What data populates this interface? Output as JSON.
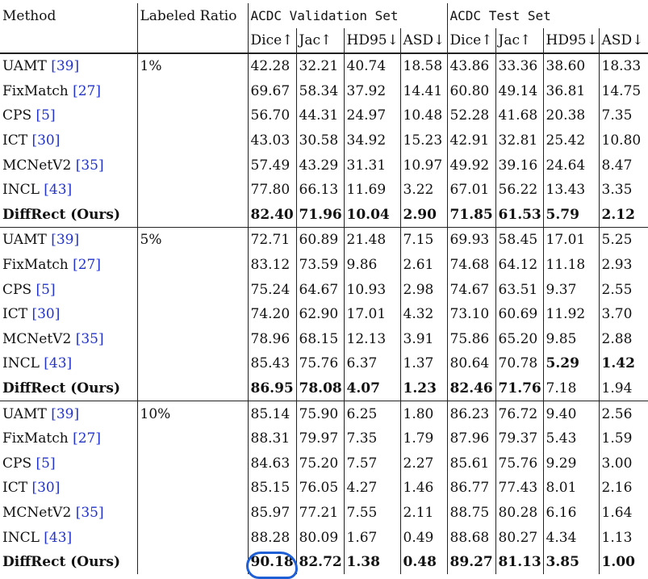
{
  "header": {
    "method": "Method",
    "ratio": "Labeled Ratio",
    "val_set": "ACDC Validation Set",
    "test_set": "ACDC Test Set",
    "metrics": [
      "Dice↑",
      "Jac↑",
      "HD95↓",
      "ASD↓",
      "Dice↑",
      "Jac↑",
      "HD95↓",
      "ASD↓"
    ]
  },
  "groups": [
    {
      "ratio": "1%",
      "rows": [
        {
          "name": "UAMT",
          "ref": "[39]",
          "vals": [
            "42.28",
            "32.21",
            "40.74",
            "18.58",
            "43.86",
            "33.36",
            "38.60",
            "18.33"
          ],
          "bold": [
            false,
            false,
            false,
            false,
            false,
            false,
            false,
            false
          ]
        },
        {
          "name": "FixMatch",
          "ref": "[27]",
          "vals": [
            "69.67",
            "58.34",
            "37.92",
            "14.41",
            "60.80",
            "49.14",
            "36.81",
            "14.75"
          ],
          "bold": [
            false,
            false,
            false,
            false,
            false,
            false,
            false,
            false
          ]
        },
        {
          "name": "CPS",
          "ref": "[5]",
          "vals": [
            "56.70",
            "44.31",
            "24.97",
            "10.48",
            "52.28",
            "41.68",
            "20.38",
            "7.35"
          ],
          "bold": [
            false,
            false,
            false,
            false,
            false,
            false,
            false,
            false
          ]
        },
        {
          "name": "ICT",
          "ref": "[30]",
          "vals": [
            "43.03",
            "30.58",
            "34.92",
            "15.23",
            "42.91",
            "32.81",
            "25.42",
            "10.80"
          ],
          "bold": [
            false,
            false,
            false,
            false,
            false,
            false,
            false,
            false
          ]
        },
        {
          "name": "MCNetV2",
          "ref": "[35]",
          "vals": [
            "57.49",
            "43.29",
            "31.31",
            "10.97",
            "49.92",
            "39.16",
            "24.64",
            "8.47"
          ],
          "bold": [
            false,
            false,
            false,
            false,
            false,
            false,
            false,
            false
          ]
        },
        {
          "name": "INCL",
          "ref": "[43]",
          "vals": [
            "77.80",
            "66.13",
            "11.69",
            "3.22",
            "67.01",
            "56.22",
            "13.43",
            "3.35"
          ],
          "bold": [
            false,
            false,
            false,
            false,
            false,
            false,
            false,
            false
          ]
        },
        {
          "name": "DiffRect (Ours)",
          "ref": "",
          "ours": true,
          "vals": [
            "82.40",
            "71.96",
            "10.04",
            "2.90",
            "71.85",
            "61.53",
            "5.79",
            "2.12"
          ],
          "bold": [
            true,
            true,
            true,
            true,
            true,
            true,
            true,
            true
          ]
        }
      ]
    },
    {
      "ratio": "5%",
      "rows": [
        {
          "name": "UAMT",
          "ref": "[39]",
          "vals": [
            "72.71",
            "60.89",
            "21.48",
            "7.15",
            "69.93",
            "58.45",
            "17.01",
            "5.25"
          ],
          "bold": [
            false,
            false,
            false,
            false,
            false,
            false,
            false,
            false
          ]
        },
        {
          "name": "FixMatch",
          "ref": "[27]",
          "vals": [
            "83.12",
            "73.59",
            "9.86",
            "2.61",
            "74.68",
            "64.12",
            "11.18",
            "2.93"
          ],
          "bold": [
            false,
            false,
            false,
            false,
            false,
            false,
            false,
            false
          ]
        },
        {
          "name": "CPS",
          "ref": "[5]",
          "vals": [
            "75.24",
            "64.67",
            "10.93",
            "2.98",
            "74.67",
            "63.51",
            "9.37",
            "2.55"
          ],
          "bold": [
            false,
            false,
            false,
            false,
            false,
            false,
            false,
            false
          ]
        },
        {
          "name": "ICT",
          "ref": "[30]",
          "vals": [
            "74.20",
            "62.90",
            "17.01",
            "4.32",
            "73.10",
            "60.69",
            "11.92",
            "3.70"
          ],
          "bold": [
            false,
            false,
            false,
            false,
            false,
            false,
            false,
            false
          ]
        },
        {
          "name": "MCNetV2",
          "ref": "[35]",
          "vals": [
            "78.96",
            "68.15",
            "12.13",
            "3.91",
            "75.86",
            "65.20",
            "9.85",
            "2.88"
          ],
          "bold": [
            false,
            false,
            false,
            false,
            false,
            false,
            false,
            false
          ]
        },
        {
          "name": "INCL",
          "ref": "[43]",
          "vals": [
            "85.43",
            "75.76",
            "6.37",
            "1.37",
            "80.64",
            "70.78",
            "5.29",
            "1.42"
          ],
          "bold": [
            false,
            false,
            false,
            false,
            false,
            false,
            true,
            true
          ]
        },
        {
          "name": "DiffRect (Ours)",
          "ref": "",
          "ours": true,
          "vals": [
            "86.95",
            "78.08",
            "4.07",
            "1.23",
            "82.46",
            "71.76",
            "7.18",
            "1.94"
          ],
          "bold": [
            true,
            true,
            true,
            true,
            true,
            true,
            false,
            false
          ]
        }
      ]
    },
    {
      "ratio": "10%",
      "rows": [
        {
          "name": "UAMT",
          "ref": "[39]",
          "vals": [
            "85.14",
            "75.90",
            "6.25",
            "1.80",
            "86.23",
            "76.72",
            "9.40",
            "2.56"
          ],
          "bold": [
            false,
            false,
            false,
            false,
            false,
            false,
            false,
            false
          ]
        },
        {
          "name": "FixMatch",
          "ref": "[27]",
          "vals": [
            "88.31",
            "79.97",
            "7.35",
            "1.79",
            "87.96",
            "79.37",
            "5.43",
            "1.59"
          ],
          "bold": [
            false,
            false,
            false,
            false,
            false,
            false,
            false,
            false
          ]
        },
        {
          "name": "CPS",
          "ref": "[5]",
          "vals": [
            "84.63",
            "75.20",
            "7.57",
            "2.27",
            "85.61",
            "75.76",
            "9.29",
            "3.00"
          ],
          "bold": [
            false,
            false,
            false,
            false,
            false,
            false,
            false,
            false
          ]
        },
        {
          "name": "ICT",
          "ref": "[30]",
          "vals": [
            "85.15",
            "76.05",
            "4.27",
            "1.46",
            "86.77",
            "77.43",
            "8.01",
            "2.16"
          ],
          "bold": [
            false,
            false,
            false,
            false,
            false,
            false,
            false,
            false
          ]
        },
        {
          "name": "MCNetV2",
          "ref": "[35]",
          "vals": [
            "85.97",
            "77.21",
            "7.55",
            "2.11",
            "88.75",
            "80.28",
            "6.16",
            "1.64"
          ],
          "bold": [
            false,
            false,
            false,
            false,
            false,
            false,
            false,
            false
          ]
        },
        {
          "name": "INCL",
          "ref": "[43]",
          "vals": [
            "88.28",
            "80.09",
            "1.67",
            "0.49",
            "88.68",
            "80.27",
            "4.34",
            "1.13"
          ],
          "bold": [
            false,
            false,
            false,
            false,
            false,
            false,
            false,
            false
          ]
        },
        {
          "name": "DiffRect (Ours)",
          "ref": "",
          "ours": true,
          "vals": [
            "90.18",
            "82.72",
            "1.38",
            "0.48",
            "89.27",
            "81.13",
            "3.85",
            "1.00"
          ],
          "bold": [
            true,
            true,
            true,
            true,
            true,
            true,
            true,
            true
          ]
        }
      ]
    }
  ]
}
